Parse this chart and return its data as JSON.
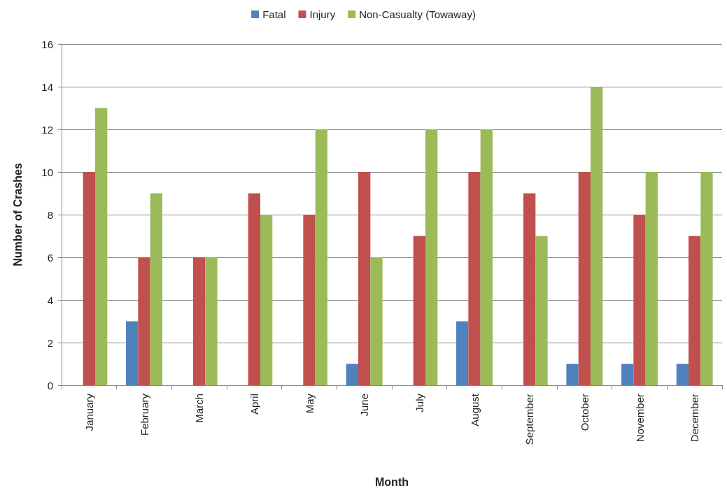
{
  "chart_data": {
    "type": "bar",
    "xlabel": "Month",
    "ylabel": "Number of Crashes",
    "categories": [
      "January",
      "February",
      "March",
      "April",
      "May",
      "June",
      "July",
      "August",
      "September",
      "October",
      "November",
      "December"
    ],
    "series": [
      {
        "name": "Fatal",
        "color": "#4f81bd",
        "values": [
          0,
          3,
          0,
          0,
          0,
          1,
          0,
          3,
          0,
          1,
          1,
          1
        ]
      },
      {
        "name": "Injury",
        "color": "#c0504d",
        "values": [
          10,
          6,
          6,
          9,
          8,
          10,
          7,
          10,
          9,
          10,
          8,
          7
        ]
      },
      {
        "name": "Non-Casualty (Towaway)",
        "color": "#9bbb59",
        "values": [
          13,
          9,
          6,
          8,
          12,
          6,
          12,
          12,
          7,
          14,
          10,
          10
        ]
      }
    ],
    "ylim": [
      0,
      16
    ],
    "yticks": [
      0,
      2,
      4,
      6,
      8,
      10,
      12,
      14,
      16
    ],
    "grid": "y",
    "legend": "top"
  }
}
